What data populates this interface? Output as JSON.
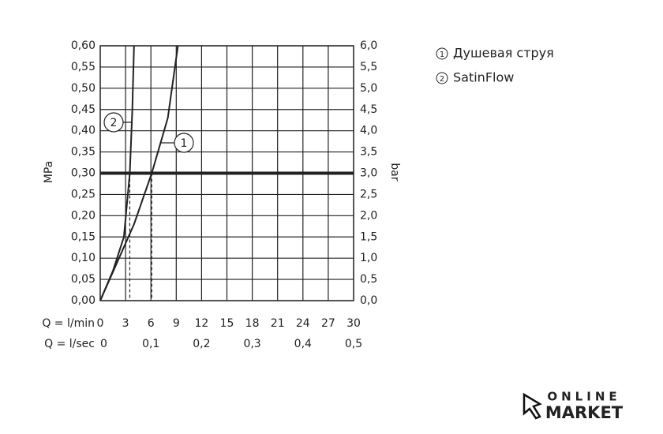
{
  "chart_data": {
    "type": "line",
    "ylabel": "MPa",
    "y2label": "bar",
    "xlabel": "Q = l/min",
    "x2label": "Q = l/sec",
    "xlim": [
      0,
      30
    ],
    "xticks": [
      0,
      3,
      6,
      9,
      12,
      15,
      18,
      21,
      24,
      27,
      30
    ],
    "x2ticks": [
      {
        "value": 0,
        "label": "0"
      },
      {
        "value": 6,
        "label": "0,1"
      },
      {
        "value": 12,
        "label": "0,2"
      },
      {
        "value": 18,
        "label": "0,3"
      },
      {
        "value": 24,
        "label": "0,4"
      },
      {
        "value": 30,
        "label": "0,5"
      }
    ],
    "ylim": [
      0,
      0.6
    ],
    "yticks": [
      {
        "value": 0,
        "label": "0,00"
      },
      {
        "value": 0.05,
        "label": "0,05"
      },
      {
        "value": 0.1,
        "label": "0,10"
      },
      {
        "value": 0.15,
        "label": "0,15"
      },
      {
        "value": 0.2,
        "label": "0,20"
      },
      {
        "value": 0.25,
        "label": "0,25"
      },
      {
        "value": 0.3,
        "label": "0,30"
      },
      {
        "value": 0.35,
        "label": "0,35"
      },
      {
        "value": 0.4,
        "label": "0,40"
      },
      {
        "value": 0.45,
        "label": "0,45"
      },
      {
        "value": 0.5,
        "label": "0,50"
      },
      {
        "value": 0.55,
        "label": "0,55"
      },
      {
        "value": 0.6,
        "label": "0,60"
      }
    ],
    "y2lim": [
      0,
      6
    ],
    "y2ticks": [
      {
        "value": 0,
        "label": "0,0"
      },
      {
        "value": 0.5,
        "label": "0,5"
      },
      {
        "value": 1,
        "label": "1,0"
      },
      {
        "value": 1.5,
        "label": "1,5"
      },
      {
        "value": 2,
        "label": "2,0"
      },
      {
        "value": 2.5,
        "label": "2,5"
      },
      {
        "value": 3,
        "label": "3,0"
      },
      {
        "value": 3.5,
        "label": "3,5"
      },
      {
        "value": 4,
        "label": "4,0"
      },
      {
        "value": 4.5,
        "label": "4,5"
      },
      {
        "value": 5,
        "label": "5,0"
      },
      {
        "value": 5.5,
        "label": "5,5"
      },
      {
        "value": 6,
        "label": "6,0"
      }
    ],
    "reference_y": 0.3,
    "grid": true,
    "series": [
      {
        "name": "Душевая струя",
        "label": "1",
        "color": "#222222",
        "x": [
          0,
          2,
          4,
          6.1,
          8,
          9.2
        ],
        "values": [
          0,
          0.09,
          0.18,
          0.3,
          0.43,
          0.6
        ]
      },
      {
        "name": "SatinFlow",
        "label": "2",
        "color": "#222222",
        "x": [
          0,
          1.5,
          2.8,
          3.5,
          3.8,
          4.0
        ],
        "values": [
          0,
          0.07,
          0.15,
          0.3,
          0.45,
          0.6
        ]
      }
    ]
  },
  "watermark": {
    "line1": "ONLINE",
    "line2": "MARKET"
  }
}
